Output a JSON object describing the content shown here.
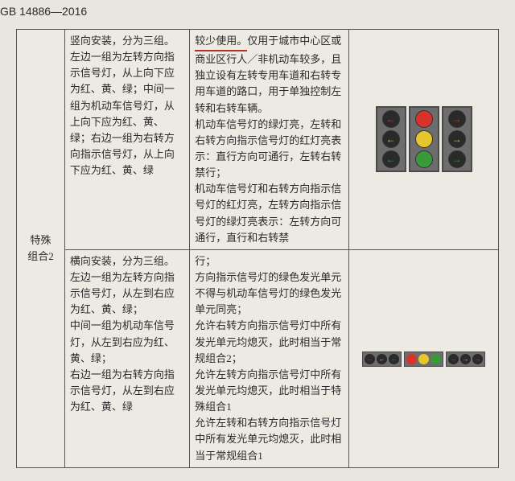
{
  "gb_code": "GB 14886—2016",
  "row_label": {
    "line1": "特殊",
    "line2": "组合2"
  },
  "row1": {
    "col_b": "竖向安装，分为三组。左边一组为左转方向指示信号灯，从上向下应为红、黄、绿；中间一组为机动车信号灯，从上向下应为红、黄、绿；右边一组为右转方向指示信号灯，从上向下应为红、黄、绿",
    "col_c_u": "较少使用。",
    "col_c_rest": "仅用于城市中心区或商业区行人／非机动车较多，且独立设有左转专用车道和右转专用车道的路口，用于单独控制左转和右转车辆。\n机动车信号灯的绿灯亮，左转和右转方向指示信号灯的红灯亮表示：直行方向可通行，左转右转禁行；\n机动车信号灯和右转方向指示信号灯的红灯亮，左转方向指示信号灯的绿灯亮表示：左转方向可通行，直行和右转禁"
  },
  "row2": {
    "col_b": "横向安装，分为三组。左边一组为左转方向指示信号灯，从左到右应为红、黄、绿；\n中间一组为机动车信号灯，从左到右应为红、黄、绿；\n右边一组为右转方向指示信号灯，从左到右应为红、黄、绿",
    "col_c": "行；\n方向指示信号灯的绿色发光单元不得与机动车信号灯的绿色发光单元同亮；\n允许右转方向指示信号灯中所有发光单元均熄灭，此时相当于常规组合2；\n允许左转方向指示信号灯中所有发光单元均熄灭，此时相当于特殊组合1\n允许左转和右转方向指示信号灯中所有发光单元均熄灭，此时相当于常规组合1"
  },
  "lights": {
    "housing_bg": "#6d6d6d",
    "housing_border": "#4a4a4a",
    "red": "#d8332a",
    "yellow": "#e6c62e",
    "green": "#3a9a3a"
  }
}
